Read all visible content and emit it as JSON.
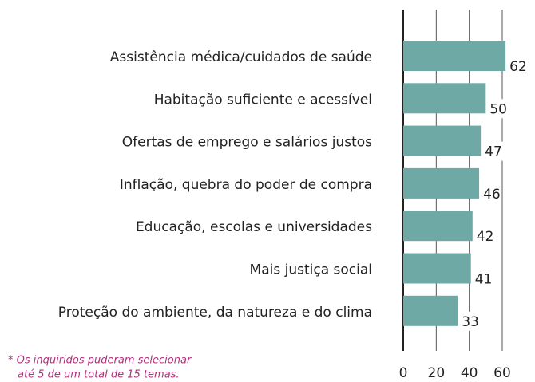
{
  "chart_data": {
    "type": "bar",
    "orientation": "horizontal",
    "categories": [
      "Assistência médica/cuidados de saúde",
      "Habitação suficiente e acessível",
      "Ofertas de emprego e salários justos",
      "Inflação, quebra do poder de compra",
      "Educação, escolas e universidades",
      "Mais justiça social",
      "Proteção do ambiente, da natureza e do clima"
    ],
    "values": [
      62,
      50,
      47,
      46,
      42,
      41,
      33
    ],
    "color": "#6fa9a5",
    "xlim": [
      0,
      65
    ],
    "xticks": [
      0,
      20,
      40,
      60
    ],
    "grid": true,
    "footnote": [
      "* Os inquiridos puderam selecionar",
      "até 5 de um total de 15 temas."
    ]
  }
}
